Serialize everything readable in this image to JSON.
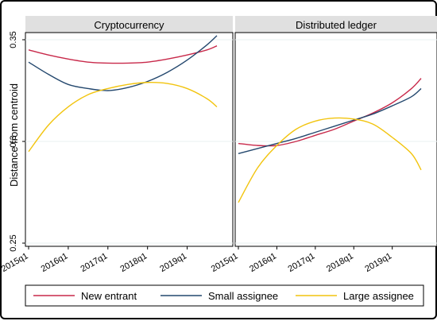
{
  "chart_data": {
    "type": "line",
    "ylabel": "Distance from centroid",
    "ylim": [
      0.25,
      0.355
    ],
    "yticks": [
      "0.25",
      "0.3",
      "0.35"
    ],
    "ytick_values": [
      0.25,
      0.3,
      0.35
    ],
    "xticks": [
      "2015q1",
      "2016q1",
      "2017q1",
      "2018q1",
      "2019q1"
    ],
    "legend_position": "bottom",
    "colors": {
      "new_entrant": "#c8294a",
      "small_assignee": "#24486e",
      "large_assignee": "#f2c40e",
      "strip": "#e0e0e0",
      "grid": "#eaf2f2"
    },
    "series_names": [
      "New entrant",
      "Small assignee",
      "Large assignee"
    ],
    "panels": [
      {
        "title": "Cryptocurrency",
        "series": [
          {
            "name": "New entrant",
            "x": [
              "2015q1",
              "2015q3",
              "2016q1",
              "2016q3",
              "2017q1",
              "2017q3",
              "2018q1",
              "2018q3",
              "2019q1",
              "2019q3",
              "2019q4"
            ],
            "values": [
              0.345,
              0.3425,
              0.3405,
              0.339,
              0.3385,
              0.3385,
              0.339,
              0.3405,
              0.3425,
              0.345,
              0.347
            ]
          },
          {
            "name": "Small assignee",
            "x": [
              "2015q1",
              "2015q3",
              "2016q1",
              "2016q3",
              "2017q1",
              "2017q3",
              "2018q1",
              "2018q3",
              "2019q1",
              "2019q3",
              "2019q4"
            ],
            "values": [
              0.339,
              0.333,
              0.328,
              0.326,
              0.325,
              0.3265,
              0.3295,
              0.334,
              0.34,
              0.3475,
              0.352
            ]
          },
          {
            "name": "Large assignee",
            "x": [
              "2015q1",
              "2015q3",
              "2016q1",
              "2016q3",
              "2017q1",
              "2017q3",
              "2018q1",
              "2018q3",
              "2019q1",
              "2019q3",
              "2019q4"
            ],
            "values": [
              0.295,
              0.308,
              0.317,
              0.323,
              0.326,
              0.328,
              0.329,
              0.3285,
              0.326,
              0.321,
              0.317
            ]
          }
        ]
      },
      {
        "title": "Distributed ledger",
        "series": [
          {
            "name": "New entrant",
            "x": [
              "2015q1",
              "2015q3",
              "2016q1",
              "2016q3",
              "2017q1",
              "2017q3",
              "2018q1",
              "2018q3",
              "2019q1",
              "2019q3",
              "2019q4"
            ],
            "values": [
              0.299,
              0.298,
              0.298,
              0.3,
              0.303,
              0.306,
              0.31,
              0.314,
              0.319,
              0.326,
              0.331
            ]
          },
          {
            "name": "Small assignee",
            "x": [
              "2015q1",
              "2015q3",
              "2016q1",
              "2016q3",
              "2017q1",
              "2017q3",
              "2018q1",
              "2018q3",
              "2019q1",
              "2019q3",
              "2019q4"
            ],
            "values": [
              0.294,
              0.2965,
              0.299,
              0.3015,
              0.3045,
              0.3075,
              0.3105,
              0.3135,
              0.3175,
              0.322,
              0.326
            ]
          },
          {
            "name": "Large assignee",
            "x": [
              "2015q1",
              "2015q3",
              "2016q1",
              "2016q3",
              "2017q1",
              "2017q3",
              "2018q1",
              "2018q3",
              "2019q1",
              "2019q3",
              "2019q4"
            ],
            "values": [
              0.27,
              0.287,
              0.298,
              0.306,
              0.31,
              0.3115,
              0.311,
              0.3085,
              0.302,
              0.294,
              0.286
            ]
          }
        ]
      }
    ]
  }
}
